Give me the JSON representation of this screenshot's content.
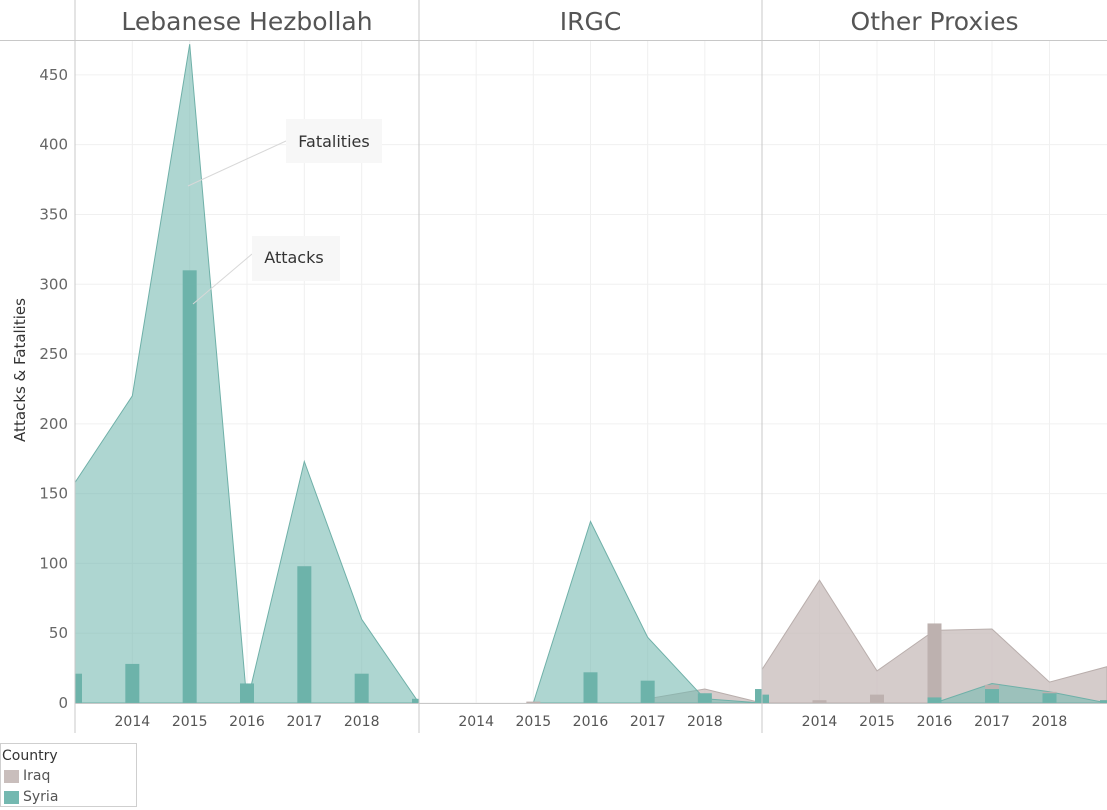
{
  "chart_data": {
    "type": "area",
    "subtype": "area with overlaid bars, faceted by group",
    "y_axis_title": "Attacks & Fatalities",
    "y_ticks": [
      0,
      50,
      100,
      150,
      200,
      250,
      300,
      350,
      400,
      450
    ],
    "ylim": [
      0,
      475
    ],
    "x_ticks": [
      2014,
      2015,
      2016,
      2017,
      2018
    ],
    "measures": {
      "area": "Fatalities",
      "bars": "Attacks"
    },
    "gridlines": true,
    "legend_position": "bottom-left",
    "legend": {
      "title": "Country",
      "items": [
        {
          "name": "Iraq",
          "color": "#c9bebc"
        },
        {
          "name": "Syria",
          "color": "#74b8b0"
        }
      ]
    },
    "panels": [
      {
        "name": "Lebanese Hezbollah",
        "xlim": [
          2013.0,
          2019.0
        ],
        "fatalities": {
          "Syria": {
            "x": [
              2013.0,
              2014.0,
              2015.0,
              2016.0,
              2017.0,
              2018.0,
              2019.0
            ],
            "values": [
              158,
              220,
              472,
              0,
              173,
              60,
              0
            ]
          },
          "Iraq": {
            "x": [],
            "values": []
          }
        },
        "attacks": {
          "Syria": {
            "x": [
              2013.0,
              2014.0,
              2015.0,
              2016.0,
              2017.0,
              2018.0,
              2019.0
            ],
            "values": [
              21,
              28,
              310,
              14,
              98,
              21,
              3
            ]
          },
          "Iraq": {
            "x": [],
            "values": []
          }
        },
        "annotations": [
          {
            "text": "Fatalities"
          },
          {
            "text": "Attacks"
          }
        ]
      },
      {
        "name": "IRGC",
        "xlim": [
          2013.0,
          2019.0
        ],
        "fatalities": {
          "Syria": {
            "x": [
              2015.0,
              2016.0,
              2017.0,
              2018.0,
              2019.0
            ],
            "values": [
              0,
              130,
              47,
              3,
              0
            ]
          },
          "Iraq": {
            "x": [
              2017.0,
              2018.0,
              2019.0
            ],
            "values": [
              3,
              10,
              0
            ]
          }
        },
        "attacks": {
          "Syria": {
            "x": [
              2016.0,
              2017.0,
              2018.0,
              2019.0
            ],
            "values": [
              22,
              16,
              7,
              10
            ]
          },
          "Iraq": {
            "x": [
              2015.0,
              2017.0,
              2018.0,
              2019.0
            ],
            "values": [
              1,
              2,
              5,
              7
            ]
          }
        }
      },
      {
        "name": "Other Proxies",
        "xlim": [
          2013.0,
          2019.0
        ],
        "fatalities": {
          "Syria": {
            "x": [
              2016.0,
              2017.0,
              2018.0,
              2019.0
            ],
            "values": [
              0,
              14,
              8,
              0
            ]
          },
          "Iraq": {
            "x": [
              2013.0,
              2014.0,
              2015.0,
              2016.0,
              2017.0,
              2018.0,
              2019.0
            ],
            "values": [
              24,
              88,
              23,
              52,
              53,
              15,
              26
            ]
          }
        },
        "attacks": {
          "Syria": {
            "x": [
              2013.0,
              2016.0,
              2017.0,
              2018.0,
              2019.0
            ],
            "values": [
              6,
              4,
              10,
              7,
              2
            ]
          },
          "Iraq": {
            "x": [
              2013.0,
              2014.0,
              2015.0,
              2016.0,
              2017.0,
              2018.0,
              2019.0
            ],
            "values": [
              0,
              2,
              6,
              57,
              13,
              8,
              2
            ]
          }
        }
      }
    ]
  }
}
